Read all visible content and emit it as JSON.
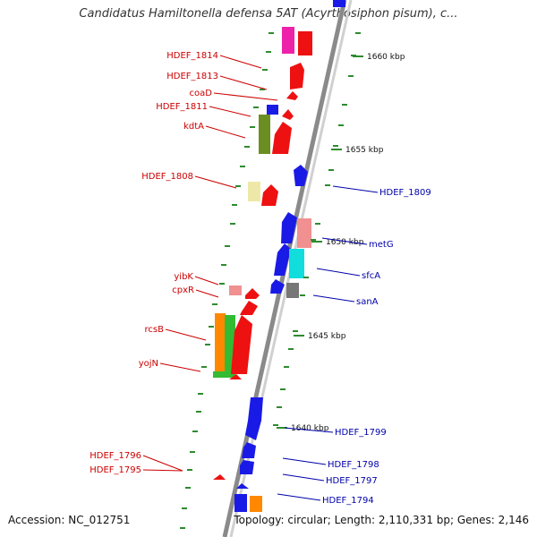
{
  "title": "Candidatus Hamiltonella defensa 5AT (Acyrthosiphon pisum), c...",
  "footer": {
    "accession": "Accession: NC_012751",
    "summary": "Topology: circular; Length: 2,110,331 bp; Genes: 2,146"
  },
  "colors": {
    "backbone": "#8a8a8a",
    "tick": "#2e8b2e",
    "left_label": "#cc0000",
    "right_label": "#0000aa"
  },
  "kbp_ticks": [
    {
      "label": "1660 kbp"
    },
    {
      "label": "1655 kbp"
    },
    {
      "label": "1650 kbp"
    },
    {
      "label": "1645 kbp"
    },
    {
      "label": "1640 kbp"
    }
  ],
  "left_genes": [
    {
      "label": "HDEF_1814"
    },
    {
      "label": "HDEF_1813"
    },
    {
      "label": "coaD"
    },
    {
      "label": "HDEF_1811"
    },
    {
      "label": "kdtA"
    },
    {
      "label": "HDEF_1808"
    },
    {
      "label": "yibK"
    },
    {
      "label": "cpxR"
    },
    {
      "label": "rcsB"
    },
    {
      "label": "yojN"
    },
    {
      "label": "HDEF_1796"
    },
    {
      "label": "HDEF_1795"
    }
  ],
  "right_genes": [
    {
      "label": "HDEF_1809"
    },
    {
      "label": "metG"
    },
    {
      "label": "sfcA"
    },
    {
      "label": "sanA"
    },
    {
      "label": "HDEF_1799"
    },
    {
      "label": "HDEF_1798"
    },
    {
      "label": "HDEF_1797"
    },
    {
      "label": "HDEF_1794"
    }
  ]
}
